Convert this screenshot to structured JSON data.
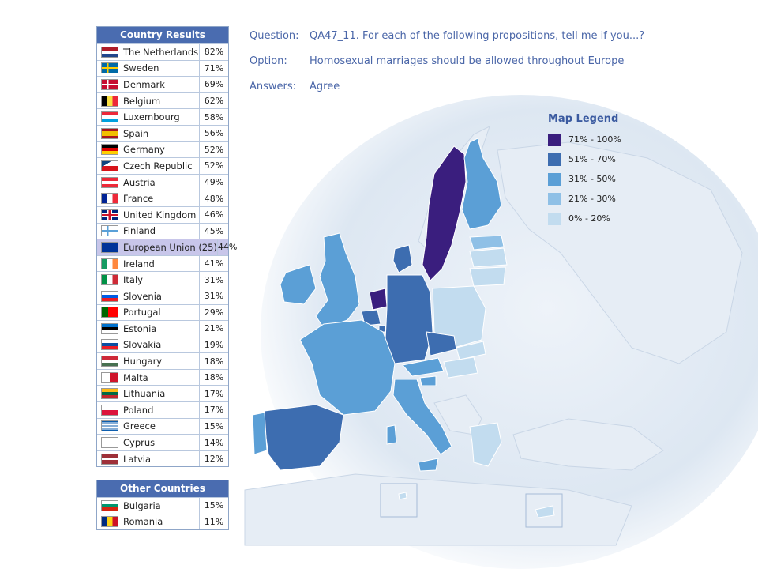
{
  "country_results": {
    "title": "Country Results",
    "rows": [
      {
        "name": "The Netherlands",
        "value": "82%",
        "flag": "nl"
      },
      {
        "name": "Sweden",
        "value": "71%",
        "flag": "se"
      },
      {
        "name": "Denmark",
        "value": "69%",
        "flag": "dk"
      },
      {
        "name": "Belgium",
        "value": "62%",
        "flag": "be"
      },
      {
        "name": "Luxembourg",
        "value": "58%",
        "flag": "lu"
      },
      {
        "name": "Spain",
        "value": "56%",
        "flag": "es"
      },
      {
        "name": "Germany",
        "value": "52%",
        "flag": "de"
      },
      {
        "name": "Czech Republic",
        "value": "52%",
        "flag": "cz"
      },
      {
        "name": "Austria",
        "value": "49%",
        "flag": "at"
      },
      {
        "name": "France",
        "value": "48%",
        "flag": "fr"
      },
      {
        "name": "United Kingdom",
        "value": "46%",
        "flag": "gb"
      },
      {
        "name": "Finland",
        "value": "45%",
        "flag": "fi"
      },
      {
        "name": "European Union (25)",
        "value": "44%",
        "flag": "eu"
      },
      {
        "name": "Ireland",
        "value": "41%",
        "flag": "ie"
      },
      {
        "name": "Italy",
        "value": "31%",
        "flag": "it"
      },
      {
        "name": "Slovenia",
        "value": "31%",
        "flag": "si"
      },
      {
        "name": "Portugal",
        "value": "29%",
        "flag": "pt"
      },
      {
        "name": "Estonia",
        "value": "21%",
        "flag": "ee"
      },
      {
        "name": "Slovakia",
        "value": "19%",
        "flag": "sk"
      },
      {
        "name": "Hungary",
        "value": "18%",
        "flag": "hu"
      },
      {
        "name": "Malta",
        "value": "18%",
        "flag": "mt"
      },
      {
        "name": "Lithuania",
        "value": "17%",
        "flag": "lt"
      },
      {
        "name": "Poland",
        "value": "17%",
        "flag": "pl"
      },
      {
        "name": "Greece",
        "value": "15%",
        "flag": "gr"
      },
      {
        "name": "Cyprus",
        "value": "14%",
        "flag": "cy"
      },
      {
        "name": "Latvia",
        "value": "12%",
        "flag": "lv"
      }
    ]
  },
  "other_countries": {
    "title": "Other Countries",
    "rows": [
      {
        "name": "Bulgaria",
        "value": "15%",
        "flag": "bg"
      },
      {
        "name": "Romania",
        "value": "11%",
        "flag": "ro"
      }
    ]
  },
  "info": {
    "question_label": "Question:",
    "question": "QA47_11. For each of the following propositions, tell me if you...?",
    "option_label": "Option:",
    "option": "Homosexual marriages should be allowed throughout Europe",
    "answers_label": "Answers:",
    "answers": "Agree"
  },
  "legend": {
    "title": "Map Legend",
    "items": [
      {
        "label": "71% - 100%",
        "color": "#3a1e7e"
      },
      {
        "label": "51% - 70%",
        "color": "#3d6db0"
      },
      {
        "label": "31% - 50%",
        "color": "#5b9fd6"
      },
      {
        "label": "21% - 30%",
        "color": "#8fc0e6"
      },
      {
        "label": "0% - 20%",
        "color": "#c2dcef"
      }
    ]
  }
}
